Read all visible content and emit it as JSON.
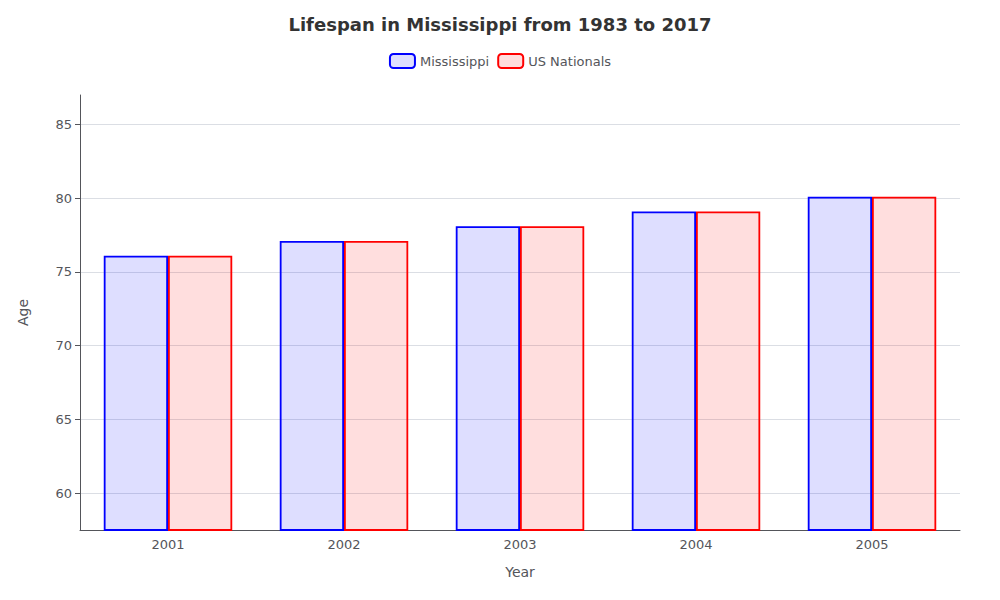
{
  "chart_data": {
    "type": "bar",
    "title": "Lifespan in Mississippi from 1983 to 2017",
    "x_label": "Year",
    "y_label": "Age",
    "categories": [
      "2001",
      "2002",
      "2003",
      "2004",
      "2005"
    ],
    "series": [
      {
        "name": "Mississippi",
        "color": "#0000ff",
        "values": [
          76.1,
          77.1,
          78.1,
          79.1,
          80.1
        ]
      },
      {
        "name": "US Nationals",
        "color": "#ff0000",
        "values": [
          76.1,
          77.1,
          78.1,
          79.1,
          80.1
        ]
      }
    ],
    "ylim": [
      57.5,
      87
    ],
    "yticks": [
      60,
      65,
      70,
      75,
      80,
      85
    ],
    "grid": true,
    "legend": "top"
  }
}
